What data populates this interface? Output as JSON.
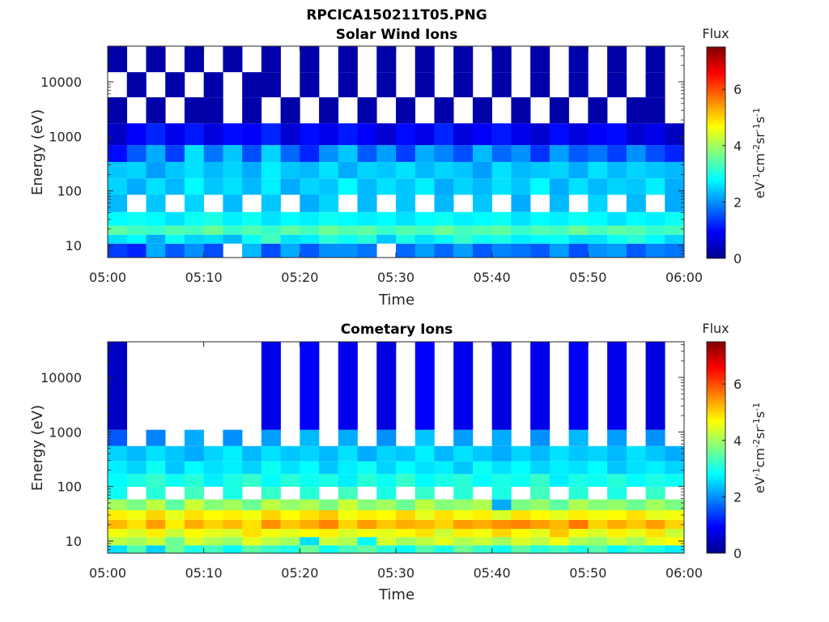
{
  "figure": {
    "title": "RPCICA150211T05.PNG"
  },
  "chart_data": [
    {
      "type": "heatmap",
      "title": "Solar Wind Ions",
      "xlabel": "Time",
      "ylabel": "Energy (eV)",
      "x_range": [
        "05:00",
        "06:00"
      ],
      "x_ticks": [
        "05:00",
        "05:10",
        "05:20",
        "05:30",
        "05:40",
        "05:50",
        "06:00"
      ],
      "y_scale": "log",
      "y_range": [
        6,
        45000
      ],
      "y_ticks": [
        10,
        100,
        1000,
        10000
      ],
      "y_tick_labels": [
        "10",
        "100",
        "1000",
        "10000"
      ],
      "colorbar": {
        "label": "Flux",
        "unit": "eV-1cm-2sr-1s-1",
        "range": [
          0,
          7.5
        ],
        "ticks": [
          "0",
          "2",
          "4",
          "6"
        ]
      },
      "time_columns": 30,
      "energy_bands": [
        {
          "energy_eV": 9,
          "flux": [
            1.4,
            1.2,
            2.2,
            1.6,
            2.0,
            1.5,
            0,
            2.3,
            1.5,
            2.2,
            1.6,
            2.0,
            2.0,
            1.8,
            0,
            1.7,
            2.1,
            1.7,
            2.1,
            1.6,
            1.9,
            1.8,
            1.6,
            2.1,
            1.5,
            2.0,
            2.1,
            1.6,
            1.9,
            1.8
          ]
        },
        {
          "energy_eV": 13,
          "flux": [
            2.6,
            2.8,
            2.2,
            2.9,
            2.5,
            2.6,
            2.3,
            2.9,
            3.3,
            2.6,
            2.7,
            3.1,
            2.9,
            3.1,
            2.4,
            3.0,
            2.6,
            2.8,
            3.2,
            2.9,
            3.0,
            2.7,
            2.8,
            2.9,
            2.6,
            2.6,
            2.9,
            3.1,
            2.8,
            2.5
          ]
        },
        {
          "energy_eV": 19,
          "flux": [
            3.5,
            3.3,
            3.2,
            3.4,
            3.3,
            3.6,
            3.2,
            3.4,
            3.2,
            3.5,
            3.3,
            3.6,
            3.4,
            3.5,
            3.2,
            3.4,
            3.3,
            3.6,
            3.3,
            3.4,
            3.5,
            3.2,
            3.4,
            3.3,
            3.6,
            3.3,
            3.5,
            3.4,
            3.2,
            3.3
          ]
        },
        {
          "energy_eV": 28,
          "flux": [
            2.8,
            2.9,
            2.8,
            2.6,
            2.9,
            3.0,
            2.7,
            2.9,
            2.6,
            2.8,
            2.7,
            2.9,
            2.8,
            2.7,
            2.8,
            2.6,
            2.8,
            2.9,
            2.7,
            2.8,
            2.9,
            2.6,
            2.8,
            2.7,
            2.9,
            2.8,
            2.6,
            2.8,
            2.7,
            2.9
          ]
        },
        {
          "energy_eV": 60,
          "flux": [
            2.3,
            0,
            2.4,
            0,
            2.5,
            0,
            2.3,
            0,
            2.4,
            0,
            2.2,
            2.5,
            0,
            2.3,
            0,
            2.4,
            0,
            2.3,
            0,
            2.4,
            0,
            2.2,
            0,
            2.3,
            0,
            2.5,
            0,
            2.3,
            0,
            2.2
          ]
        },
        {
          "energy_eV": 120,
          "flux": [
            2.5,
            2.2,
            2.6,
            2.3,
            2.8,
            2.4,
            2.6,
            2.3,
            2.7,
            2.2,
            2.5,
            2.4,
            2.8,
            2.3,
            2.6,
            2.4,
            2.7,
            2.2,
            2.5,
            2.3,
            2.6,
            2.4,
            2.8,
            2.2,
            2.6,
            2.3,
            2.5,
            2.4,
            2.7,
            2.2
          ]
        },
        {
          "energy_eV": 240,
          "flux": [
            2.4,
            2.5,
            2.1,
            2.4,
            2.6,
            2.3,
            2.5,
            2.2,
            2.7,
            2.4,
            2.3,
            2.6,
            2.2,
            2.5,
            2.4,
            2.6,
            2.3,
            2.5,
            2.4,
            2.1,
            2.6,
            2.3,
            2.4,
            2.5,
            2.2,
            2.6,
            2.3,
            2.5,
            2.4,
            2.3
          ]
        },
        {
          "energy_eV": 480,
          "flux": [
            1.0,
            1.6,
            2.2,
            1.4,
            2.6,
            1.8,
            2.4,
            1.5,
            2.5,
            1.7,
            1.2,
            2.0,
            2.4,
            1.6,
            2.1,
            1.4,
            2.2,
            1.9,
            1.5,
            2.3,
            1.7,
            2.0,
            1.3,
            2.1,
            1.6,
            1.8,
            1.4,
            2.0,
            1.5,
            1.2
          ]
        },
        {
          "energy_eV": 1000,
          "flux": [
            0.5,
            0.9,
            1.2,
            0.8,
            1.1,
            0.7,
            1.0,
            0.9,
            1.2,
            0.6,
            1.0,
            0.8,
            1.1,
            0.9,
            0.6,
            1.0,
            0.8,
            1.2,
            0.7,
            0.9,
            1.1,
            0.8,
            0.6,
            1.0,
            0.7,
            0.9,
            1.0,
            0.6,
            0.8,
            0.5
          ]
        },
        {
          "energy_eV": 3000,
          "flux": [
            0.3,
            0,
            0.3,
            0,
            0.3,
            0.3,
            0,
            0.3,
            0,
            0.3,
            0,
            0.3,
            0,
            0.3,
            0,
            0.3,
            0,
            0.3,
            0,
            0.3,
            0,
            0.3,
            0,
            0.3,
            0,
            0.3,
            0,
            0.3,
            0.3,
            0
          ]
        },
        {
          "energy_eV": 9000,
          "flux": [
            0,
            0.3,
            0,
            0.3,
            0,
            0.3,
            0,
            0.3,
            0.3,
            0,
            0.3,
            0,
            0.3,
            0,
            0.3,
            0,
            0.3,
            0,
            0.3,
            0,
            0.3,
            0,
            0.3,
            0,
            0.3,
            0,
            0.3,
            0,
            0.3,
            0
          ]
        },
        {
          "energy_eV": 25000,
          "flux": [
            0.3,
            0,
            0.3,
            0,
            0.3,
            0,
            0.3,
            0,
            0.3,
            0,
            0.3,
            0,
            0.3,
            0,
            0.3,
            0,
            0.3,
            0,
            0.3,
            0,
            0.3,
            0,
            0.3,
            0,
            0.3,
            0,
            0.3,
            0,
            0.3,
            0
          ]
        }
      ]
    },
    {
      "type": "heatmap",
      "title": "Cometary Ions",
      "xlabel": "Time",
      "ylabel": "Energy (eV)",
      "x_range": [
        "05:00",
        "06:00"
      ],
      "x_ticks": [
        "05:00",
        "05:10",
        "05:20",
        "05:30",
        "05:40",
        "05:50",
        "06:00"
      ],
      "y_scale": "log",
      "y_range": [
        6,
        45000
      ],
      "y_ticks": [
        10,
        100,
        1000,
        10000
      ],
      "y_tick_labels": [
        "10",
        "100",
        "1000",
        "10000"
      ],
      "colorbar": {
        "label": "Flux",
        "unit": "eV-1cm-2sr-1s-1",
        "range": [
          0,
          7.5
        ],
        "ticks": [
          "0",
          "2",
          "4",
          "6"
        ]
      },
      "time_columns": 30,
      "energy_bands": [
        {
          "energy_eV": 7,
          "flux": [
            2.6,
            3.4,
            2.5,
            3.6,
            3.0,
            3.3,
            2.8,
            3.5,
            3.2,
            3.0,
            3.6,
            2.9,
            3.3,
            3.5,
            3.1,
            2.8,
            3.4,
            3.0,
            3.6,
            3.2,
            2.9,
            3.5,
            3.1,
            3.3,
            3.0,
            3.4,
            2.8,
            3.2,
            3.0,
            2.7
          ]
        },
        {
          "energy_eV": 10,
          "flux": [
            4.2,
            4.0,
            4.3,
            3.6,
            4.4,
            4.1,
            3.9,
            4.5,
            4.2,
            4.0,
            2.6,
            4.3,
            4.1,
            2.8,
            4.4,
            4.0,
            4.2,
            4.5,
            4.1,
            4.3,
            4.0,
            4.4,
            4.2,
            4.6,
            4.1,
            3.9,
            4.3,
            4.0,
            4.5,
            4.7
          ]
        },
        {
          "energy_eV": 14,
          "flux": [
            4.6,
            4.4,
            4.8,
            4.3,
            4.7,
            4.5,
            4.4,
            4.9,
            4.6,
            4.5,
            4.7,
            4.8,
            4.4,
            4.6,
            4.5,
            4.7,
            4.9,
            4.3,
            4.8,
            4.6,
            5.0,
            4.7,
            4.5,
            5.1,
            4.6,
            4.4,
            4.8,
            4.5,
            4.9,
            4.3
          ]
        },
        {
          "energy_eV": 20,
          "flux": [
            5.2,
            4.9,
            5.4,
            4.8,
            5.3,
            5.0,
            5.2,
            4.9,
            5.5,
            5.1,
            5.3,
            5.6,
            5.0,
            5.4,
            5.1,
            5.3,
            5.2,
            5.0,
            5.4,
            5.3,
            5.5,
            5.6,
            5.4,
            5.2,
            5.7,
            5.0,
            5.3,
            5.1,
            5.4,
            5.0
          ]
        },
        {
          "energy_eV": 30,
          "flux": [
            4.8,
            4.6,
            5.0,
            4.5,
            4.9,
            4.7,
            4.8,
            4.6,
            5.0,
            4.7,
            4.9,
            5.1,
            4.6,
            4.8,
            4.7,
            5.0,
            4.5,
            4.9,
            4.6,
            4.8,
            4.4,
            4.9,
            4.7,
            4.5,
            4.8,
            4.6,
            4.7,
            4.9,
            4.5,
            4.6
          ]
        },
        {
          "energy_eV": 45,
          "flux": [
            4.0,
            3.7,
            4.2,
            3.5,
            4.3,
            3.8,
            4.0,
            3.6,
            4.2,
            3.9,
            4.1,
            3.7,
            4.3,
            3.8,
            4.0,
            3.6,
            4.2,
            3.8,
            3.9,
            4.1,
            2.2,
            3.7,
            3.9,
            3.5,
            4.1,
            3.8,
            3.9,
            3.6,
            4.0,
            3.7
          ]
        },
        {
          "energy_eV": 75,
          "flux": [
            2.9,
            0,
            3.1,
            0,
            3.3,
            0,
            3.0,
            0,
            3.2,
            0,
            3.1,
            0,
            3.3,
            0,
            3.0,
            0,
            3.2,
            0,
            3.1,
            0,
            3.0,
            0,
            3.3,
            0,
            3.1,
            0,
            3.0,
            0,
            3.2,
            0
          ]
        },
        {
          "energy_eV": 130,
          "flux": [
            2.8,
            3.0,
            3.2,
            2.9,
            3.1,
            2.7,
            3.0,
            3.2,
            2.8,
            3.1,
            2.9,
            3.0,
            2.7,
            3.1,
            2.9,
            3.2,
            2.8,
            3.0,
            3.1,
            2.8,
            3.0,
            2.9,
            3.2,
            2.7,
            3.0,
            2.9,
            3.1,
            2.8,
            3.0,
            2.9
          ]
        },
        {
          "energy_eV": 220,
          "flux": [
            2.7,
            2.5,
            2.9,
            2.4,
            2.8,
            2.6,
            2.7,
            2.5,
            2.9,
            2.6,
            2.8,
            2.4,
            2.7,
            2.9,
            2.5,
            2.8,
            2.6,
            2.7,
            2.4,
            2.9,
            2.6,
            2.8,
            2.5,
            2.7,
            2.6,
            2.8,
            2.4,
            2.6,
            2.7,
            2.5
          ]
        },
        {
          "energy_eV": 380,
          "flux": [
            2.5,
            2.3,
            2.6,
            2.4,
            2.2,
            2.5,
            2.7,
            2.3,
            2.6,
            2.4,
            2.5,
            2.3,
            2.6,
            2.2,
            2.5,
            2.4,
            2.7,
            2.3,
            2.6,
            2.4,
            2.2,
            2.5,
            2.3,
            2.6,
            2.4,
            2.5,
            2.3,
            2.6,
            2.4,
            2.2
          ]
        },
        {
          "energy_eV": 800,
          "flux": [
            1.6,
            0,
            1.9,
            0,
            2.2,
            0,
            2.0,
            0,
            2.1,
            0,
            2.3,
            0,
            2.2,
            0,
            2.0,
            0,
            2.4,
            0,
            2.1,
            0,
            2.2,
            0,
            2.0,
            0,
            2.3,
            0,
            2.1,
            0,
            2.0,
            0
          ]
        },
        {
          "energy_eV": 1500,
          "flux": [
            0.5,
            0,
            0,
            0,
            0,
            0,
            0,
            0,
            0.8,
            0,
            0.9,
            0,
            0.8,
            0,
            0.7,
            0,
            0.9,
            0,
            0.8,
            0,
            0.7,
            0,
            0.8,
            0,
            0.9,
            0,
            0.8,
            0,
            0.7,
            0
          ]
        }
      ]
    }
  ]
}
